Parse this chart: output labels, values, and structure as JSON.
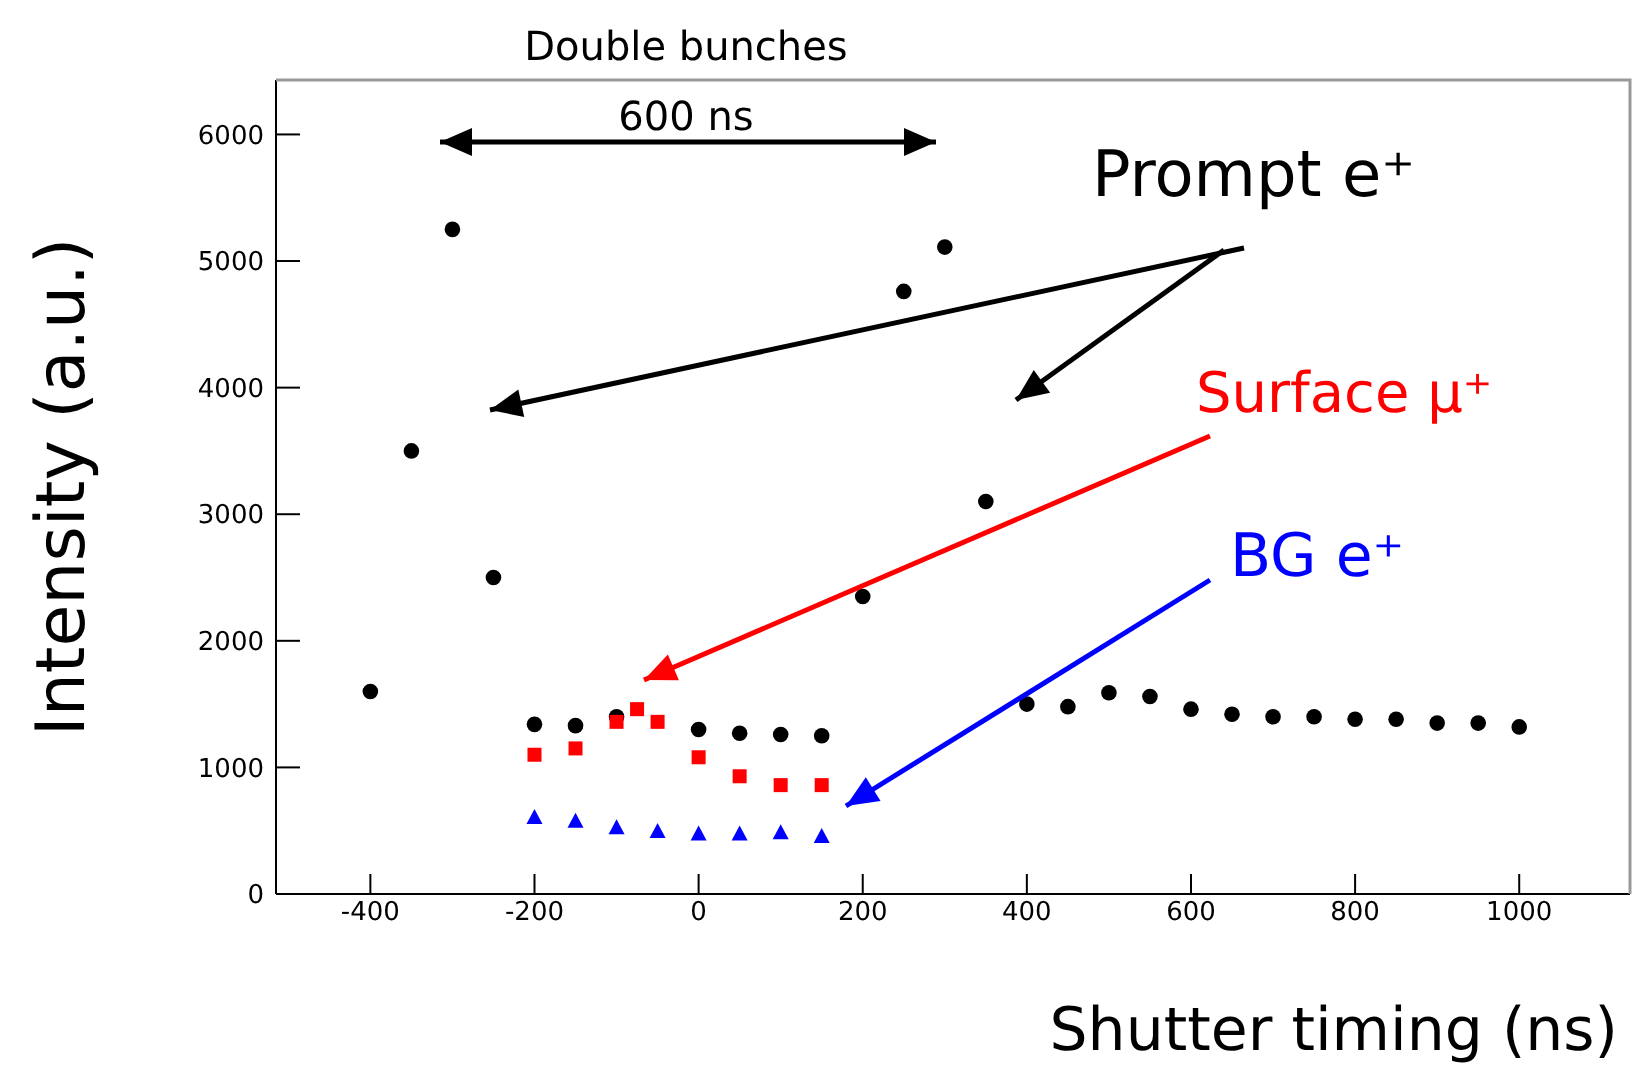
{
  "chart_data": {
    "type": "scatter",
    "xlabel": "Shutter timing (ns)",
    "ylabel": "Intensity (a.u.)",
    "annotations": [
      "Double bunches",
      "600 ns"
    ],
    "xlim": [
      -515,
      1135
    ],
    "xticks": [
      -400,
      -200,
      0,
      200,
      400,
      600,
      800,
      1000
    ],
    "ylim": [
      0,
      6430
    ],
    "yticks": [
      0,
      1000,
      2000,
      3000,
      4000,
      5000,
      6000
    ],
    "series": [
      {
        "name": "Prompt e⁺",
        "color": "#000000",
        "marker": "circle",
        "x": [
          -400,
          -350,
          -300,
          -250,
          -200,
          -150,
          -100,
          -50,
          0,
          50,
          100,
          150,
          200,
          250,
          300,
          350,
          400,
          450,
          500,
          550,
          600,
          650,
          700,
          750,
          800,
          850,
          900,
          950,
          1000
        ],
        "values": [
          1600,
          3500,
          5250,
          2500,
          1340,
          1330,
          1400,
          null,
          1300,
          1270,
          1260,
          1250,
          2350,
          4760,
          5110,
          3100,
          1500,
          1480,
          1590,
          1560,
          1460,
          1420,
          1400,
          1400,
          1380,
          1380,
          1350,
          1350,
          1320
        ]
      },
      {
        "name": "Surface μ⁺",
        "color": "#ff0000",
        "marker": "square",
        "x": [
          -200,
          -150,
          -100,
          -75,
          -50,
          0,
          50,
          100,
          150
        ],
        "values": [
          1100,
          1150,
          1360,
          1460,
          1360,
          1080,
          930,
          860,
          860
        ]
      },
      {
        "name": "BG e⁺",
        "color": "#0000ff",
        "marker": "triangle",
        "x": [
          -200,
          -150,
          -100,
          -50,
          0,
          50,
          100,
          150
        ],
        "values": [
          600,
          570,
          520,
          490,
          470,
          470,
          480,
          450
        ]
      }
    ]
  }
}
